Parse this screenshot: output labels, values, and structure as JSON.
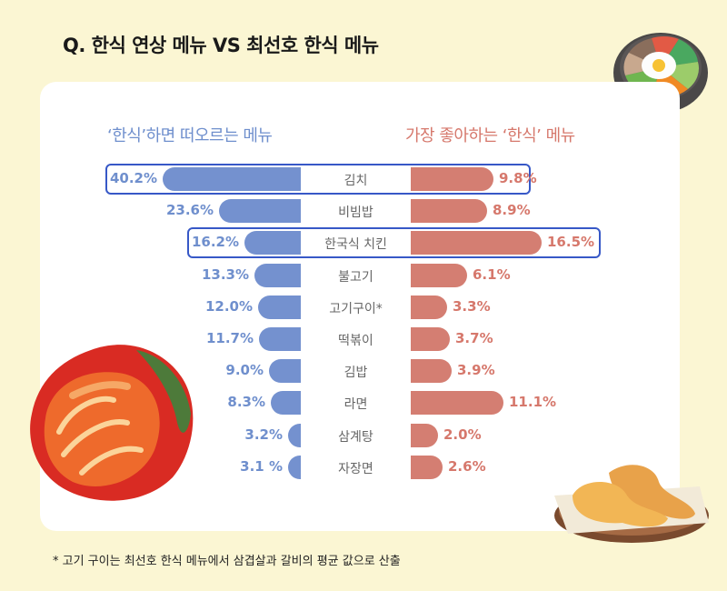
{
  "title": "Q. 한식 연상 메뉴 VS 최선호 한식 메뉴",
  "headers": {
    "left": "‘한식’하면 떠오르는 메뉴",
    "right": "가장 좋아하는 ‘한식’ 메뉴"
  },
  "footnote": "* 고기 구이는 최선호 한식 메뉴에서 삼겹살과 갈비의 평균 값으로 산출",
  "colors": {
    "left": "#7491cf",
    "right": "#d47e72",
    "highlight": "#3758c7",
    "background": "#fbf6d3"
  },
  "rows": [
    {
      "label": "김치",
      "left": "40.2%",
      "right": "9.8%"
    },
    {
      "label": "비빔밥",
      "left": "23.6%",
      "right": "8.9%"
    },
    {
      "label": "한국식 치킨",
      "left": "16.2%",
      "right": "16.5%"
    },
    {
      "label": "불고기",
      "left": "13.3%",
      "right": "6.1%"
    },
    {
      "label": "고기구이*",
      "left": "12.0%",
      "right": "3.3%"
    },
    {
      "label": "떡볶이",
      "left": "11.7%",
      "right": "3.7%"
    },
    {
      "label": "김밥",
      "left": "9.0%",
      "right": "3.9%"
    },
    {
      "label": "라면",
      "left": "8.3%",
      "right": "11.1%"
    },
    {
      "label": "삼계탕",
      "left": "3.2%",
      "right": "2.0%"
    },
    {
      "label": "자장면",
      "left": "3.1 %",
      "right": "2.6%"
    }
  ],
  "chart_data": {
    "type": "bar",
    "title": "Q. 한식 연상 메뉴 VS 최선호 한식 메뉴",
    "orientation": "horizontal-butterfly",
    "categories": [
      "김치",
      "비빔밥",
      "한국식 치킨",
      "불고기",
      "고기구이*",
      "떡볶이",
      "김밥",
      "라면",
      "삼계탕",
      "자장면"
    ],
    "series": [
      {
        "name": "‘한식’하면 떠오르는 메뉴",
        "values": [
          40.2,
          23.6,
          16.2,
          13.3,
          12.0,
          11.7,
          9.0,
          8.3,
          3.2,
          3.1
        ],
        "color": "#7491cf"
      },
      {
        "name": "가장 좋아하는 ‘한식’ 메뉴",
        "values": [
          9.8,
          8.9,
          16.5,
          6.1,
          3.3,
          3.7,
          3.9,
          11.1,
          2.0,
          2.6
        ],
        "color": "#d47e72"
      }
    ],
    "unit": "%",
    "highlighted": [
      "김치",
      "한국식 치킨"
    ],
    "annotations": [
      "* 고기 구이는 최선호 한식 메뉴에서 삼겹살과 갈비의 평균 값으로 산출"
    ]
  }
}
